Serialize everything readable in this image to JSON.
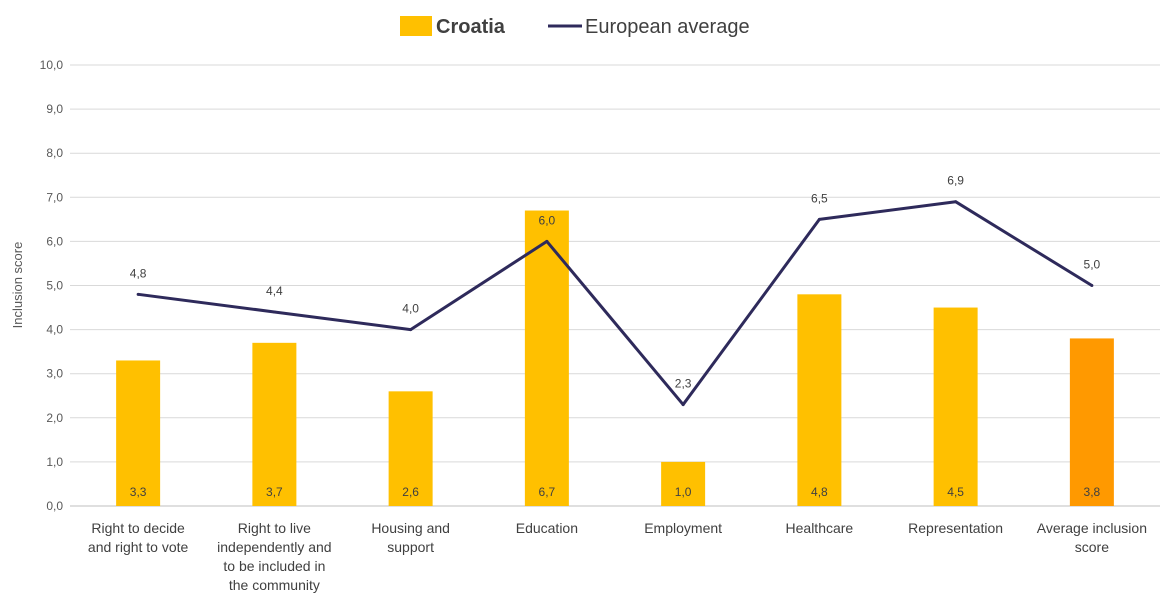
{
  "chart_data": {
    "type": "bar",
    "title": "",
    "ylabel": "Inclusion score",
    "xlabel": "",
    "ylim": [
      0,
      10
    ],
    "y_ticks": [
      "0,0",
      "1,0",
      "2,0",
      "3,0",
      "4,0",
      "5,0",
      "6,0",
      "7,0",
      "8,0",
      "9,0",
      "10,0"
    ],
    "grid": true,
    "legend_position": "top",
    "categories": [
      [
        "Right to decide",
        "and right to vote"
      ],
      [
        "Right to live",
        "independently and",
        "to be included in",
        "the community"
      ],
      [
        "Housing and",
        "support"
      ],
      [
        "Education"
      ],
      [
        "Employment"
      ],
      [
        "Healthcare"
      ],
      [
        "Representation"
      ],
      [
        "Average inclusion",
        "score"
      ]
    ],
    "series": [
      {
        "name": "Croatia",
        "kind": "bar",
        "color": "#FFC000",
        "highlight_color": "#FF9900",
        "highlight_index": 7,
        "values": [
          3.3,
          3.7,
          2.6,
          6.7,
          1.0,
          4.8,
          4.5,
          3.8
        ],
        "labels": [
          "3,3",
          "3,7",
          "2,6",
          "6,7",
          "1,0",
          "4,8",
          "4,5",
          "3,8"
        ]
      },
      {
        "name": "European average",
        "kind": "line",
        "color": "#2E2A5B",
        "values": [
          4.8,
          4.4,
          4.0,
          6.0,
          2.3,
          6.5,
          6.9,
          5.0
        ],
        "labels": [
          "4,8",
          "4,4",
          "4,0",
          "6,0",
          "2,3",
          "6,5",
          "6,9",
          "5,0"
        ]
      }
    ]
  }
}
